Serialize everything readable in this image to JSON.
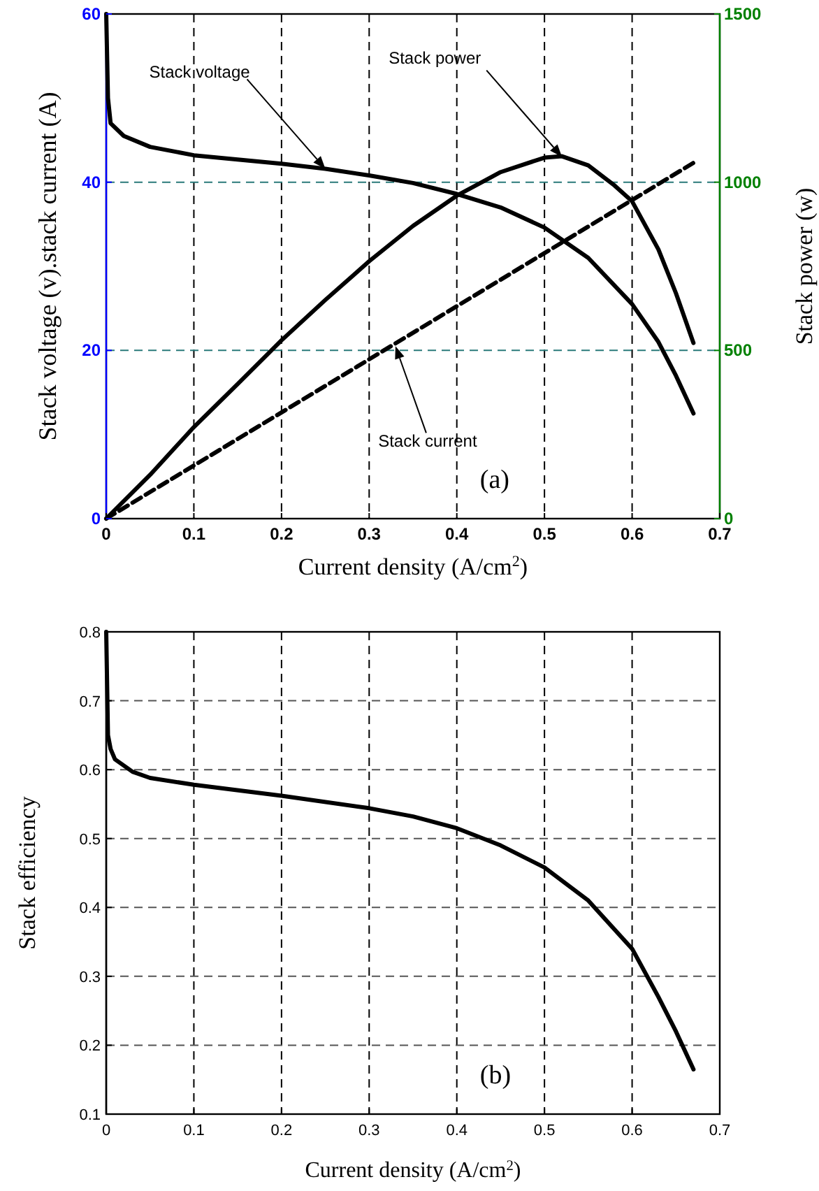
{
  "chart_data": [
    {
      "type": "line",
      "xlabel": "Current density (A/cm$^{2}$)",
      "ylabel": "Stack voltage (v).stack current (A)",
      "y2label": "Stack power (w)",
      "xlim": [
        0,
        0.7
      ],
      "xticks": [
        0,
        0.1,
        0.2,
        0.3,
        0.4,
        0.5,
        0.6,
        0.7
      ],
      "ylim": [
        0,
        60
      ],
      "yticks": [
        0,
        20,
        40,
        60
      ],
      "y2lim": [
        0,
        1500
      ],
      "y2ticks": [
        0,
        500,
        1000,
        1500
      ],
      "grid": true,
      "line_style": "solid",
      "series": [
        {
          "color": "#000000",
          "x": [
            0,
            0.002,
            0.005,
            0.02,
            0.05,
            0.1,
            0.2,
            0.25,
            0.3,
            0.35,
            0.4,
            0.45,
            0.5,
            0.55,
            0.6,
            0.63,
            0.65,
            0.67
          ],
          "values": [
            60,
            50,
            47,
            45.5,
            44.2,
            43.2,
            42.2,
            41.6,
            40.8,
            39.9,
            38.6,
            37,
            34.6,
            31,
            25.5,
            21,
            17,
            12.5
          ]
        },
        {
          "color": "#000000",
          "line_style": "dashed",
          "x": [
            0,
            0.67
          ],
          "values": [
            0,
            42.3
          ]
        },
        {
          "color": "#000000",
          "axis": "y2",
          "x": [
            0,
            0.05,
            0.1,
            0.15,
            0.2,
            0.25,
            0.3,
            0.35,
            0.4,
            0.45,
            0.5,
            0.52,
            0.55,
            0.58,
            0.6,
            0.63,
            0.65,
            0.67
          ],
          "values": [
            0,
            130,
            272,
            400,
            530,
            650,
            765,
            870,
            960,
            1030,
            1073,
            1077,
            1050,
            990,
            943,
            800,
            670,
            522
          ]
        }
      ],
      "annotations": [
        {
          "text": "Stack voltage",
          "x": 0.25,
          "y": 41.6
        },
        {
          "text": "Stack power",
          "x": 0.52,
          "y": 43
        },
        {
          "text": "Stack current",
          "x": 0.33,
          "y": 20.5
        },
        "(a)"
      ]
    },
    {
      "type": "line",
      "xlabel": "Current density (A/cm$^{2}$)",
      "ylabel": "Stack efficiency",
      "xlim": [
        0,
        0.7
      ],
      "xticks": [
        0,
        0.1,
        0.2,
        0.3,
        0.4,
        0.5,
        0.6,
        0.7
      ],
      "ylim": [
        0.1,
        0.8
      ],
      "yticks": [
        0.1,
        0.2,
        0.3,
        0.4,
        0.5,
        0.6,
        0.7,
        0.8
      ],
      "grid": true,
      "line_style": "solid",
      "series": [
        {
          "color": "#000000",
          "x": [
            0,
            0.002,
            0.005,
            0.01,
            0.03,
            0.05,
            0.1,
            0.2,
            0.3,
            0.35,
            0.4,
            0.45,
            0.5,
            0.55,
            0.6,
            0.63,
            0.65,
            0.67
          ],
          "values": [
            0.8,
            0.65,
            0.63,
            0.615,
            0.597,
            0.588,
            0.578,
            0.562,
            0.544,
            0.532,
            0.515,
            0.49,
            0.458,
            0.41,
            0.34,
            0.27,
            0.22,
            0.165
          ]
        }
      ],
      "annotations": [
        "(b)"
      ]
    }
  ]
}
